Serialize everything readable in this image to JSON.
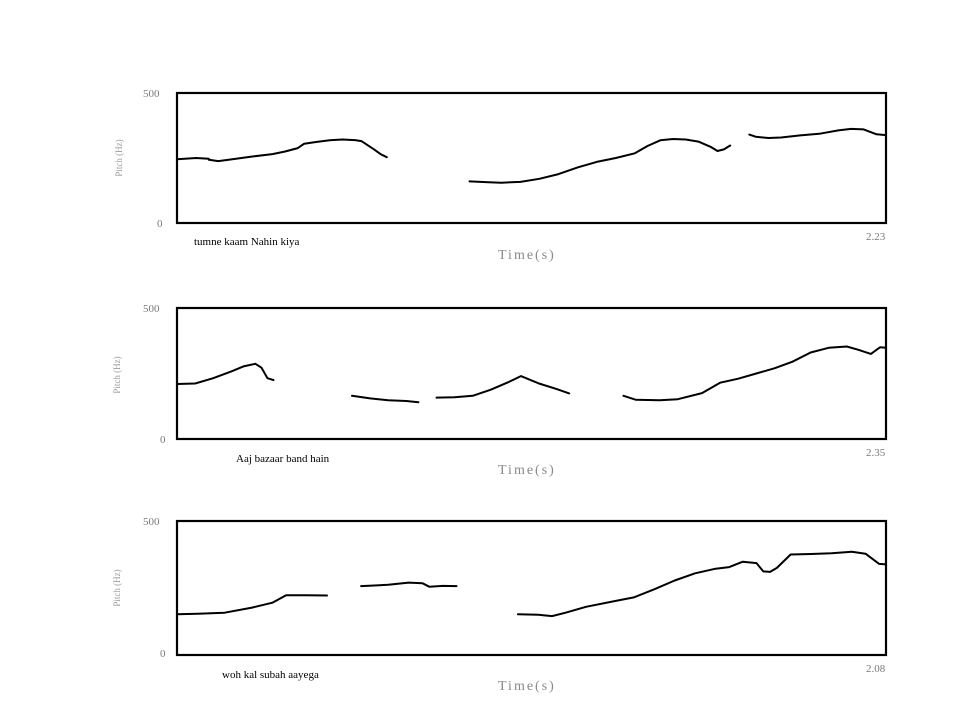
{
  "chart_data": [
    {
      "type": "line",
      "caption": "tumne kaam Nahin kiya",
      "xlabel": "Time(s)",
      "ylabel": "Pitch (Hz)",
      "ylim": [
        0,
        500
      ],
      "xlim": [
        0,
        2.23
      ],
      "y_ticks": [
        "500",
        "0"
      ],
      "x_end_label": "2.23",
      "segments": [
        [
          [
            0.0,
            245
          ],
          [
            0.06,
            250
          ],
          [
            0.1,
            247
          ],
          [
            0.1,
            243
          ],
          [
            0.13,
            238
          ],
          [
            0.18,
            246
          ],
          [
            0.24,
            256
          ],
          [
            0.3,
            265
          ],
          [
            0.34,
            275
          ],
          [
            0.38,
            288
          ],
          [
            0.4,
            305
          ],
          [
            0.44,
            312
          ],
          [
            0.48,
            318
          ],
          [
            0.52,
            321
          ],
          [
            0.56,
            319
          ],
          [
            0.58,
            315
          ],
          [
            0.62,
            283
          ],
          [
            0.64,
            265
          ],
          [
            0.66,
            253
          ]
        ],
        [
          [
            0.92,
            160
          ],
          [
            0.98,
            157
          ],
          [
            1.02,
            155
          ],
          [
            1.08,
            158
          ],
          [
            1.14,
            170
          ],
          [
            1.2,
            188
          ],
          [
            1.26,
            214
          ],
          [
            1.32,
            235
          ],
          [
            1.38,
            250
          ],
          [
            1.44,
            268
          ],
          [
            1.48,
            296
          ],
          [
            1.52,
            318
          ],
          [
            1.56,
            323
          ],
          [
            1.6,
            321
          ],
          [
            1.64,
            313
          ],
          [
            1.68,
            292
          ],
          [
            1.7,
            277
          ],
          [
            1.72,
            283
          ],
          [
            1.74,
            298
          ]
        ],
        [
          [
            1.8,
            340
          ],
          [
            1.82,
            332
          ],
          [
            1.86,
            327
          ],
          [
            1.9,
            329
          ],
          [
            1.96,
            337
          ],
          [
            2.02,
            343
          ],
          [
            2.08,
            356
          ],
          [
            2.12,
            362
          ],
          [
            2.16,
            360
          ],
          [
            2.2,
            341
          ],
          [
            2.23,
            338
          ]
        ]
      ]
    },
    {
      "type": "line",
      "caption": "Aaj bazaar band hain",
      "xlabel": "Time(s)",
      "ylabel": "Pitch (Hz)",
      "ylim": [
        0,
        500
      ],
      "xlim": [
        0,
        2.35
      ],
      "y_ticks": [
        "500",
        "0"
      ],
      "x_end_label": "2.35",
      "segments": [
        [
          [
            0.0,
            210
          ],
          [
            0.06,
            212
          ],
          [
            0.12,
            232
          ],
          [
            0.18,
            258
          ],
          [
            0.22,
            277
          ],
          [
            0.26,
            287
          ],
          [
            0.28,
            272
          ],
          [
            0.3,
            232
          ],
          [
            0.32,
            225
          ]
        ],
        [
          [
            0.58,
            165
          ],
          [
            0.64,
            155
          ],
          [
            0.7,
            148
          ],
          [
            0.76,
            145
          ],
          [
            0.8,
            140
          ]
        ],
        [
          [
            0.86,
            158
          ],
          [
            0.92,
            159
          ],
          [
            0.98,
            165
          ],
          [
            1.04,
            188
          ],
          [
            1.1,
            218
          ],
          [
            1.14,
            240
          ],
          [
            1.2,
            212
          ],
          [
            1.26,
            190
          ],
          [
            1.3,
            174
          ]
        ],
        [
          [
            1.48,
            165
          ],
          [
            1.52,
            150
          ],
          [
            1.6,
            148
          ],
          [
            1.66,
            152
          ],
          [
            1.74,
            175
          ],
          [
            1.8,
            215
          ],
          [
            1.86,
            230
          ],
          [
            1.92,
            250
          ],
          [
            1.98,
            270
          ],
          [
            2.04,
            295
          ],
          [
            2.1,
            330
          ],
          [
            2.16,
            348
          ],
          [
            2.22,
            353
          ],
          [
            2.26,
            340
          ],
          [
            2.3,
            325
          ],
          [
            2.33,
            350
          ],
          [
            2.35,
            348
          ]
        ]
      ]
    },
    {
      "type": "line",
      "caption": "woh kal subah aayega",
      "xlabel": "Time(s)",
      "ylabel": "Pitch (Hz)",
      "ylim": [
        0,
        500
      ],
      "xlim": [
        0,
        2.08
      ],
      "y_ticks": [
        "500",
        "0"
      ],
      "x_end_label": "2.08",
      "segments": [
        [
          [
            0.0,
            152
          ],
          [
            0.06,
            154
          ],
          [
            0.14,
            158
          ],
          [
            0.22,
            177
          ],
          [
            0.28,
            195
          ],
          [
            0.32,
            223
          ],
          [
            0.38,
            223
          ],
          [
            0.44,
            222
          ]
        ],
        [
          [
            0.54,
            257
          ],
          [
            0.62,
            262
          ],
          [
            0.68,
            270
          ],
          [
            0.72,
            268
          ],
          [
            0.74,
            255
          ],
          [
            0.78,
            258
          ],
          [
            0.82,
            257
          ]
        ],
        [
          [
            1.0,
            152
          ],
          [
            1.06,
            150
          ],
          [
            1.1,
            145
          ],
          [
            1.14,
            158
          ],
          [
            1.2,
            180
          ],
          [
            1.28,
            200
          ],
          [
            1.34,
            215
          ],
          [
            1.4,
            245
          ],
          [
            1.46,
            278
          ],
          [
            1.52,
            305
          ],
          [
            1.58,
            322
          ],
          [
            1.62,
            328
          ],
          [
            1.66,
            348
          ],
          [
            1.7,
            343
          ],
          [
            1.72,
            312
          ],
          [
            1.74,
            310
          ],
          [
            1.76,
            325
          ],
          [
            1.8,
            375
          ],
          [
            1.86,
            377
          ],
          [
            1.92,
            380
          ],
          [
            1.98,
            385
          ],
          [
            2.02,
            378
          ],
          [
            2.06,
            340
          ],
          [
            2.08,
            338
          ]
        ]
      ]
    }
  ]
}
